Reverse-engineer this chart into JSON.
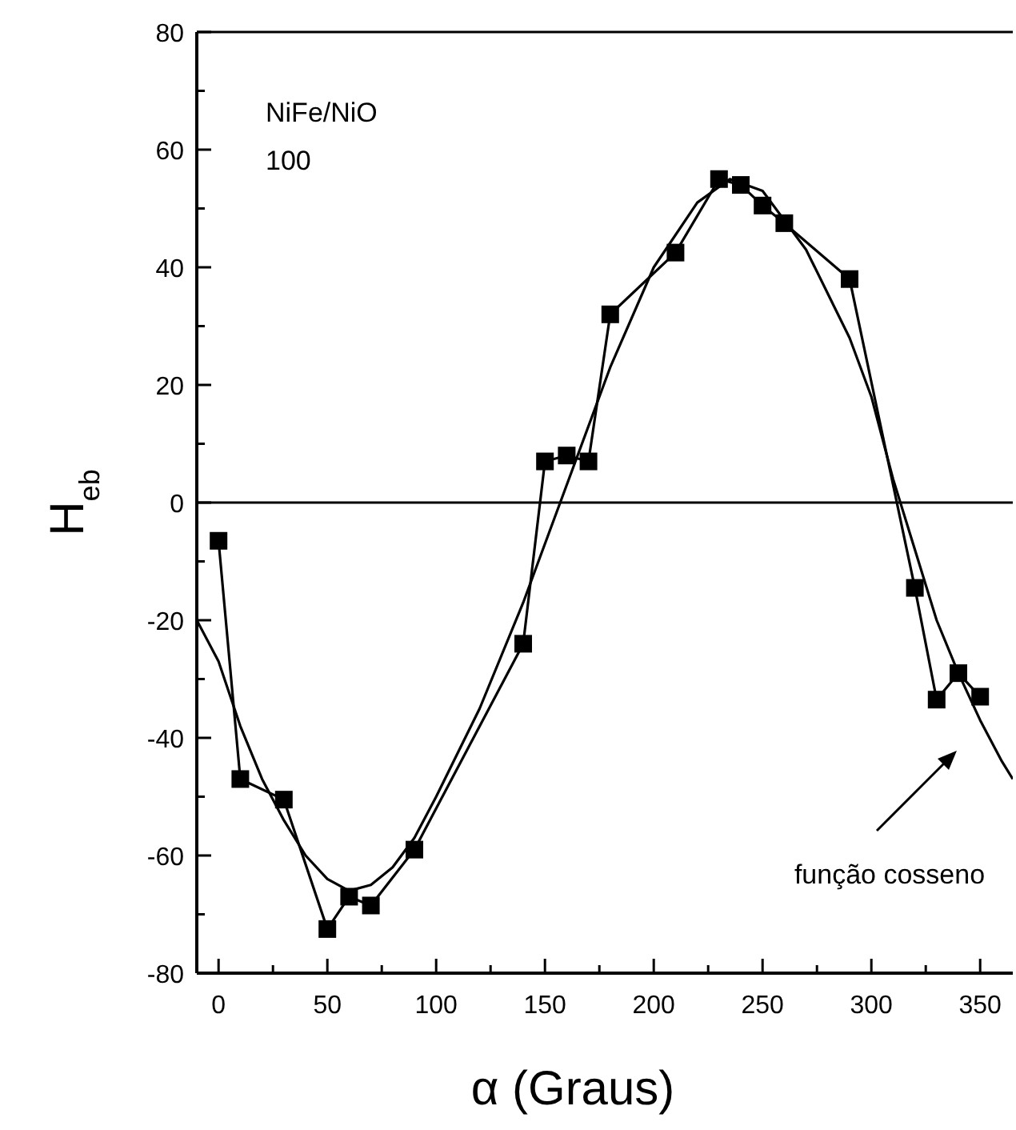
{
  "chart_data": {
    "type": "line",
    "xlabel": "α (Graus)",
    "ylabel": "H$_{eb}$",
    "xlim": [
      -10,
      365
    ],
    "ylim": [
      -80,
      80
    ],
    "xticks": [
      0,
      {
        "value": 25,
        "label": null
      },
      50,
      {
        "value": 75,
        "label": null
      },
      100,
      {
        "value": 125,
        "label": null
      },
      150,
      {
        "value": 175,
        "label": null
      },
      200,
      {
        "value": 225,
        "label": null
      },
      250,
      {
        "value": 275,
        "label": null
      },
      300,
      {
        "value": 325,
        "label": null
      },
      350
    ],
    "yticks": [
      -80,
      {
        "value": -70,
        "label": null
      },
      -60,
      {
        "value": -50,
        "label": null
      },
      -40,
      {
        "value": -30,
        "label": null
      },
      -20,
      {
        "value": -10,
        "label": null
      },
      0,
      {
        "value": 10,
        "label": null
      },
      20,
      {
        "value": 30,
        "label": null
      },
      40,
      {
        "value": 50,
        "label": null
      },
      60,
      {
        "value": 70,
        "label": null
      },
      80
    ],
    "grid": false,
    "series": [
      {
        "color": "#000000",
        "marker": "square",
        "line_style": "solid",
        "x": [
          0,
          10,
          30,
          50,
          60,
          70,
          90,
          140,
          150,
          160,
          170,
          180,
          210,
          230,
          240,
          250,
          260,
          290,
          320,
          330,
          340,
          350
        ],
        "values": [
          -6.5,
          -47,
          -50.5,
          -72.5,
          -67,
          -68.5,
          -59,
          -24,
          7,
          8,
          7,
          32,
          42.5,
          55,
          54,
          50.5,
          47.5,
          38,
          -14.5,
          -33.5,
          -29,
          -33
        ]
      },
      {
        "color": "#000000",
        "marker": "none",
        "line_style": "solid",
        "x": [
          -10,
          0,
          10,
          20,
          30,
          40,
          50,
          60,
          70,
          80,
          90,
          100,
          120,
          140,
          150,
          160,
          180,
          200,
          220,
          235,
          250,
          270,
          290,
          300,
          310,
          320,
          330,
          340,
          350,
          360,
          365
        ],
        "values": [
          -20,
          -27,
          -38,
          -47,
          -54,
          -60,
          -64,
          -66,
          -65,
          -62,
          -57,
          -50,
          -35,
          -17,
          -7,
          3,
          23,
          40,
          51,
          55,
          53,
          43,
          28,
          18,
          4,
          -8,
          -20,
          -29,
          -37,
          -44,
          -47
        ]
      }
    ],
    "ref_lines": [
      {
        "axis": "y",
        "value": 0
      }
    ],
    "annotations": [
      "NiFe/NiO",
      "100",
      "função cosseno"
    ]
  }
}
